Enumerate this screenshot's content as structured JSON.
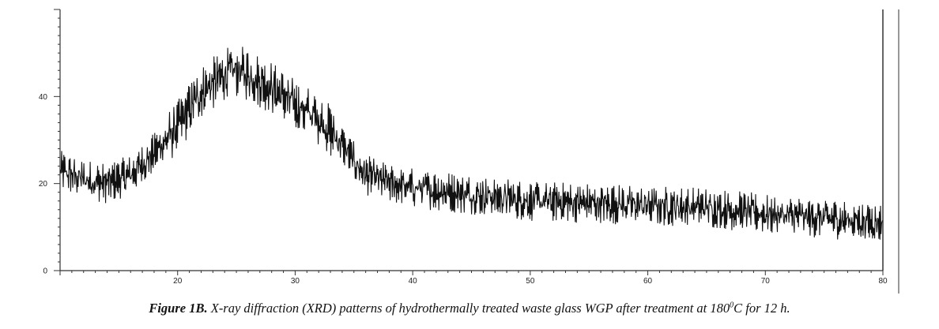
{
  "chart_data": {
    "type": "line",
    "title": "",
    "xlabel": "",
    "ylabel": "",
    "xlim": [
      10,
      80
    ],
    "ylim": [
      0,
      60
    ],
    "x_ticks": [
      20,
      30,
      40,
      50,
      60,
      70,
      80
    ],
    "y_ticks": [
      0,
      20,
      40
    ],
    "grid": false,
    "legend": "none",
    "line_color": "#111111",
    "series": [
      {
        "x": [
          10,
          12,
          14,
          16,
          18,
          20,
          22,
          24,
          25,
          26,
          28,
          30,
          32,
          34,
          35,
          36,
          38,
          40,
          45,
          50,
          55,
          60,
          65,
          70,
          75,
          80
        ],
        "y": [
          23,
          21,
          20,
          22,
          27,
          33,
          41,
          45,
          46,
          45,
          42,
          38,
          35,
          29,
          25,
          22,
          20,
          19,
          17.5,
          16,
          15.5,
          15,
          14.5,
          13,
          12,
          11
        ]
      }
    ]
  },
  "caption": {
    "label": "Figure 1B.",
    "text_before": " X-ray diffraction (XRD) patterns of hydrothermally treated waste glass WGP after treatment at 180",
    "superscript": "0",
    "text_after": "C for 12 h."
  }
}
